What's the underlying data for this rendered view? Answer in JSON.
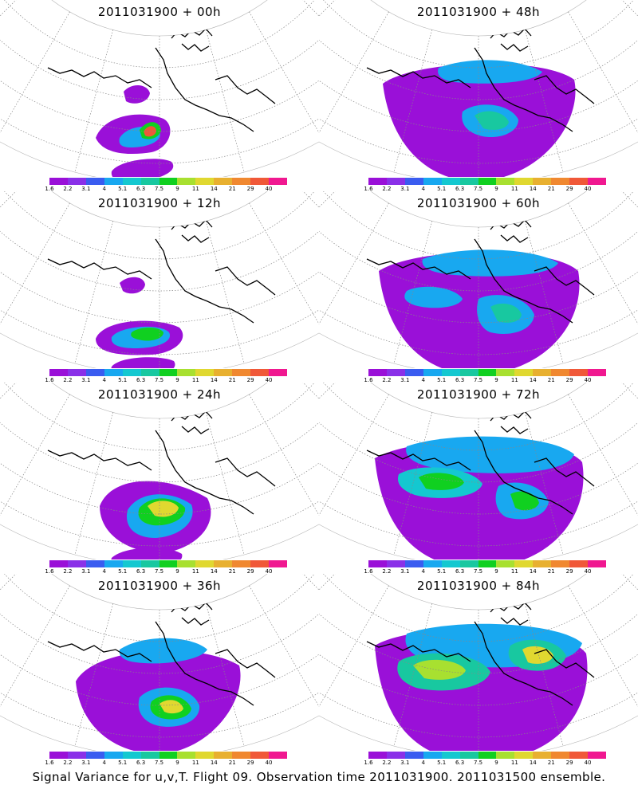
{
  "colorbar": {
    "colors": [
      "#9a10d8",
      "#8a30e8",
      "#3a5cf0",
      "#18a8f0",
      "#14c8d0",
      "#18c8a0",
      "#10d020",
      "#a8e030",
      "#e0d830",
      "#e8b030",
      "#f08830",
      "#f05838",
      "#f01890"
    ],
    "labels": [
      "1.6",
      "2.2",
      "3.1",
      "4",
      "5.1",
      "6.3",
      "7.5",
      "9",
      "11",
      "14",
      "21",
      "29",
      "40"
    ]
  },
  "panels": [
    {
      "title": "2011031900 + 00h",
      "intensity": 0
    },
    {
      "title": "2011031900 + 48h",
      "intensity": 4
    },
    {
      "title": "2011031900 + 12h",
      "intensity": 1
    },
    {
      "title": "2011031900 + 60h",
      "intensity": 5
    },
    {
      "title": "2011031900 + 24h",
      "intensity": 2
    },
    {
      "title": "2011031900 + 72h",
      "intensity": 6
    },
    {
      "title": "2011031900 + 36h",
      "intensity": 3
    },
    {
      "title": "2011031900 + 84h",
      "intensity": 7
    }
  ],
  "footer": "Signal Variance for u,v,T. Flight 09. Observation time 2011031900. 2011031500 ensemble."
}
